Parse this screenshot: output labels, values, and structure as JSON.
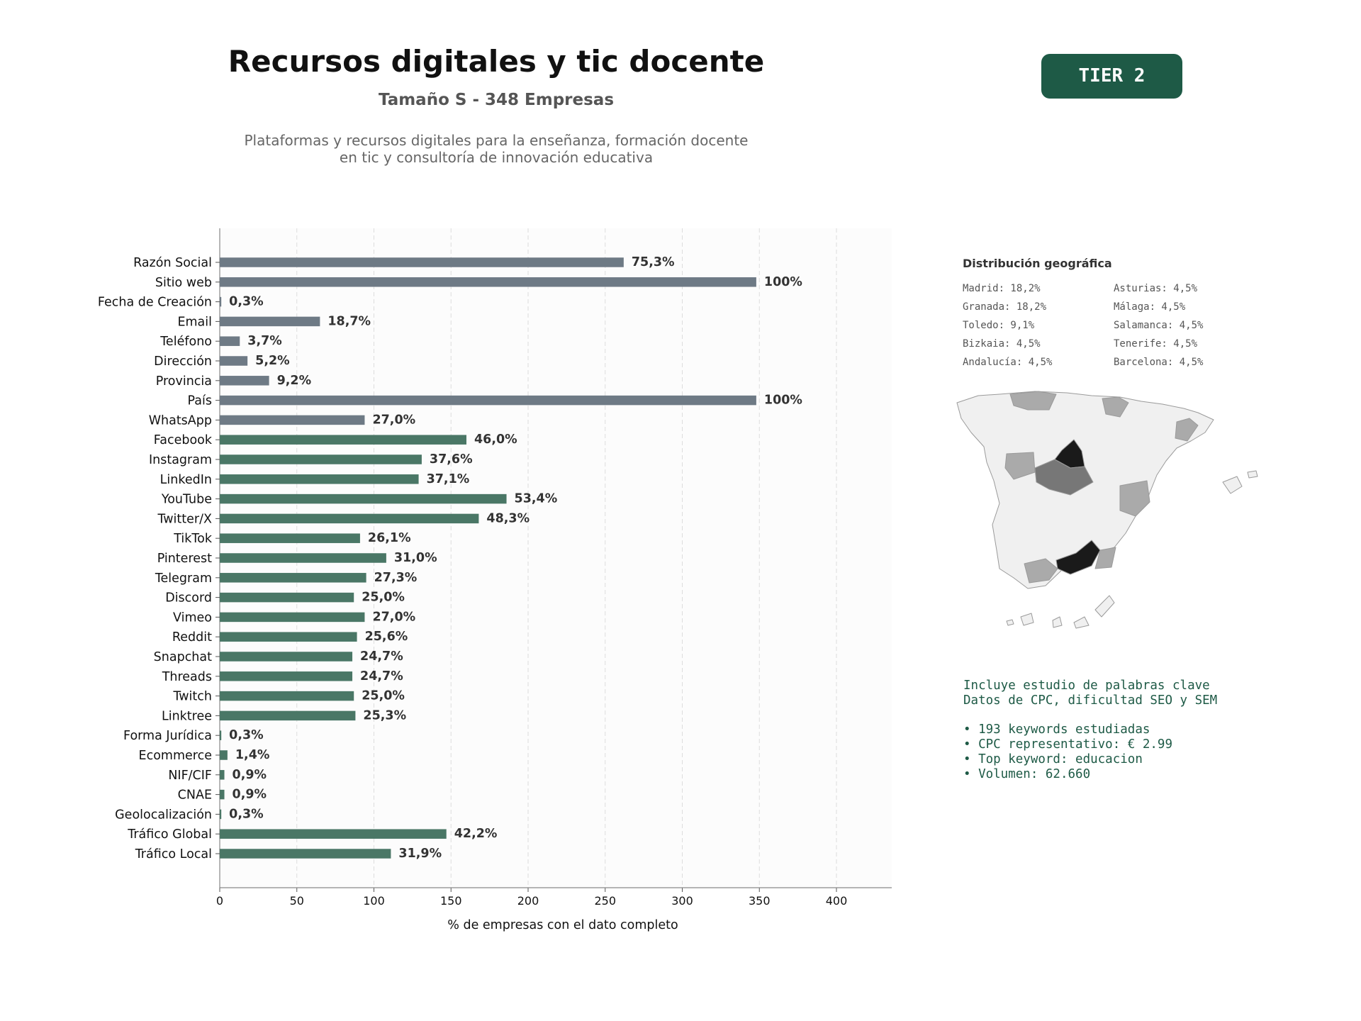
{
  "header": {
    "title": "Recursos digitales y tic docente",
    "subtitle": "Tamaño S - 348 Empresas",
    "description_line1": "Plataformas y recursos digitales para la enseñanza, formación docente",
    "description_line2": "en tic y consultoría de innovación educativa",
    "tier_badge": "TIER 2"
  },
  "colors": {
    "accent": "#1e5a46",
    "bar_gray": "#6e7a85",
    "bar_green": "#4a7766"
  },
  "chart_data": {
    "type": "bar",
    "orientation": "horizontal",
    "xlabel": "% de empresas con el dato completo",
    "xlim": [
      0,
      435
    ],
    "xticks": [
      0,
      50,
      100,
      150,
      200,
      250,
      300,
      350,
      400
    ],
    "grid": "vertical dashed",
    "categories": [
      "Razón Social",
      "Sitio web",
      "Fecha de Creación",
      "Email",
      "Teléfono",
      "Dirección",
      "Provincia",
      "País",
      "WhatsApp",
      "Facebook",
      "Instagram",
      "LinkedIn",
      "YouTube",
      "Twitter/X",
      "TikTok",
      "Pinterest",
      "Telegram",
      "Discord",
      "Vimeo",
      "Reddit",
      "Snapchat",
      "Threads",
      "Twitch",
      "Linktree",
      "Forma Jurídica",
      "Ecommerce",
      "NIF/CIF",
      "CNAE",
      "Geolocalización",
      "Tráfico Global",
      "Tráfico Local"
    ],
    "values": [
      262,
      348,
      1,
      65,
      13,
      18,
      32,
      348,
      94,
      160,
      131,
      129,
      186,
      168,
      91,
      108,
      95,
      87,
      94,
      89,
      86,
      86,
      87,
      88,
      1,
      5,
      3,
      3,
      1,
      147,
      111
    ],
    "labels": [
      "75,3%",
      "100%",
      "0,3%",
      "18,7%",
      "3,7%",
      "5,2%",
      "9,2%",
      "100%",
      "27,0%",
      "46,0%",
      "37,6%",
      "37,1%",
      "53,4%",
      "48,3%",
      "26,1%",
      "31,0%",
      "27,3%",
      "25,0%",
      "27,0%",
      "25,6%",
      "24,7%",
      "24,7%",
      "25,0%",
      "25,3%",
      "0,3%",
      "1,4%",
      "0,9%",
      "0,9%",
      "0,3%",
      "42,2%",
      "31,9%"
    ],
    "bar_colors": [
      "gray",
      "gray",
      "gray",
      "gray",
      "gray",
      "gray",
      "gray",
      "gray",
      "gray",
      "green",
      "green",
      "green",
      "green",
      "green",
      "green",
      "green",
      "green",
      "green",
      "green",
      "green",
      "green",
      "green",
      "green",
      "green",
      "green",
      "green",
      "green",
      "green",
      "green",
      "green",
      "green"
    ]
  },
  "geo": {
    "title": "Distribución geográfica",
    "items": [
      "Madrid: 18,2%",
      "Asturias: 4,5%",
      "Granada: 18,2%",
      "Málaga: 4,5%",
      "Toledo: 9,1%",
      "Salamanca: 4,5%",
      "Bizkaia: 4,5%",
      "Tenerife: 4,5%",
      "Andalucía: 4,5%",
      "Barcelona: 4,5%"
    ]
  },
  "keywords": {
    "line1": "Incluye estudio de palabras clave",
    "line2": "Datos de CPC, dificultad SEO y SEM",
    "bullets": [
      "• 193 keywords estudiadas",
      "• CPC representativo: € 2.99",
      "• Top keyword: educacion",
      "• Volumen: 62.660"
    ]
  }
}
